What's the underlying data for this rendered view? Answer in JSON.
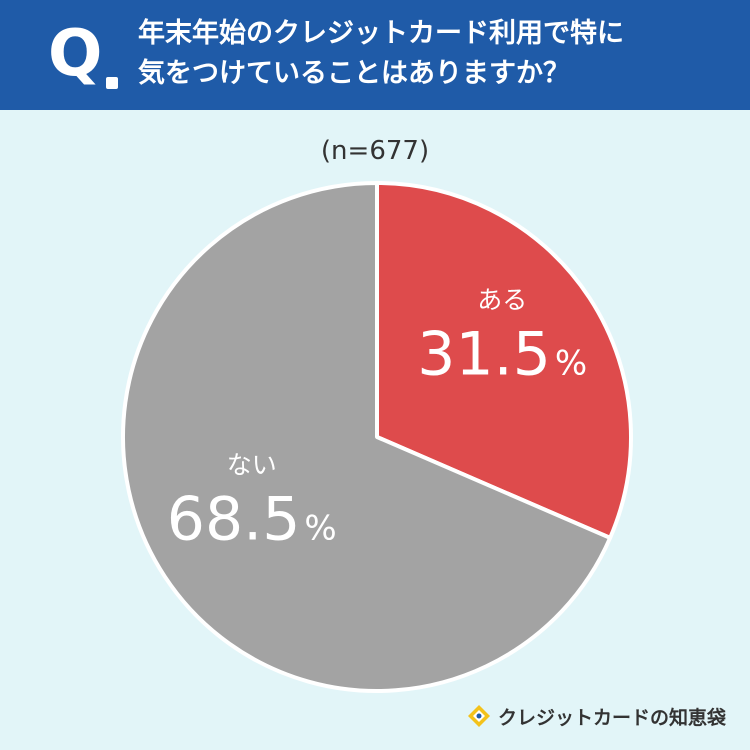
{
  "question": {
    "mark": "Q",
    "line1": "年末年始のクレジットカード利用で特に",
    "line2": "気をつけていることはありますか？"
  },
  "sample_size": "(n=677)",
  "colors": {
    "header": "#1f5ba8",
    "background": "#e2f5f8",
    "aru": "#de4b4c",
    "nai": "#a3a3a3"
  },
  "chart_data": {
    "type": "pie",
    "title": "年末年始のクレジットカード利用で特に気をつけていることはありますか？",
    "slices": [
      {
        "label": "ある",
        "value": 31.5,
        "display": "31.5",
        "unit": "%",
        "color": "#de4b4c"
      },
      {
        "label": "ない",
        "value": 68.5,
        "display": "68.5",
        "unit": "%",
        "color": "#a3a3a3"
      }
    ]
  },
  "brand": {
    "name": "クレジットカードの知恵袋",
    "icon": "diamond-pencil-icon"
  }
}
